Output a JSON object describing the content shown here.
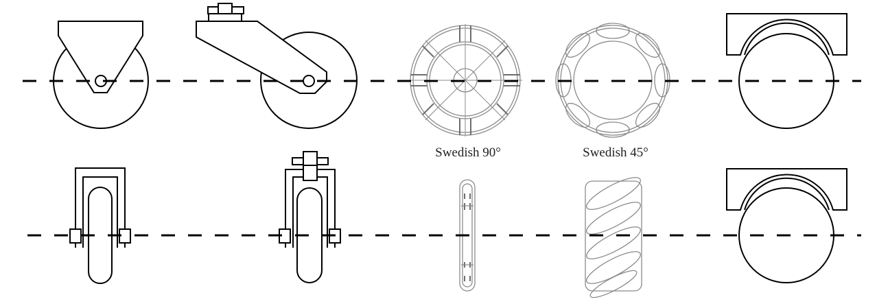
{
  "diagram": {
    "labels": {
      "swedish_90": "Swedish 90°",
      "swedish_45": "Swedish 45°"
    },
    "colors": {
      "ink": "#000000",
      "light_ink": "#8a8a8a",
      "background": "#ffffff"
    }
  }
}
